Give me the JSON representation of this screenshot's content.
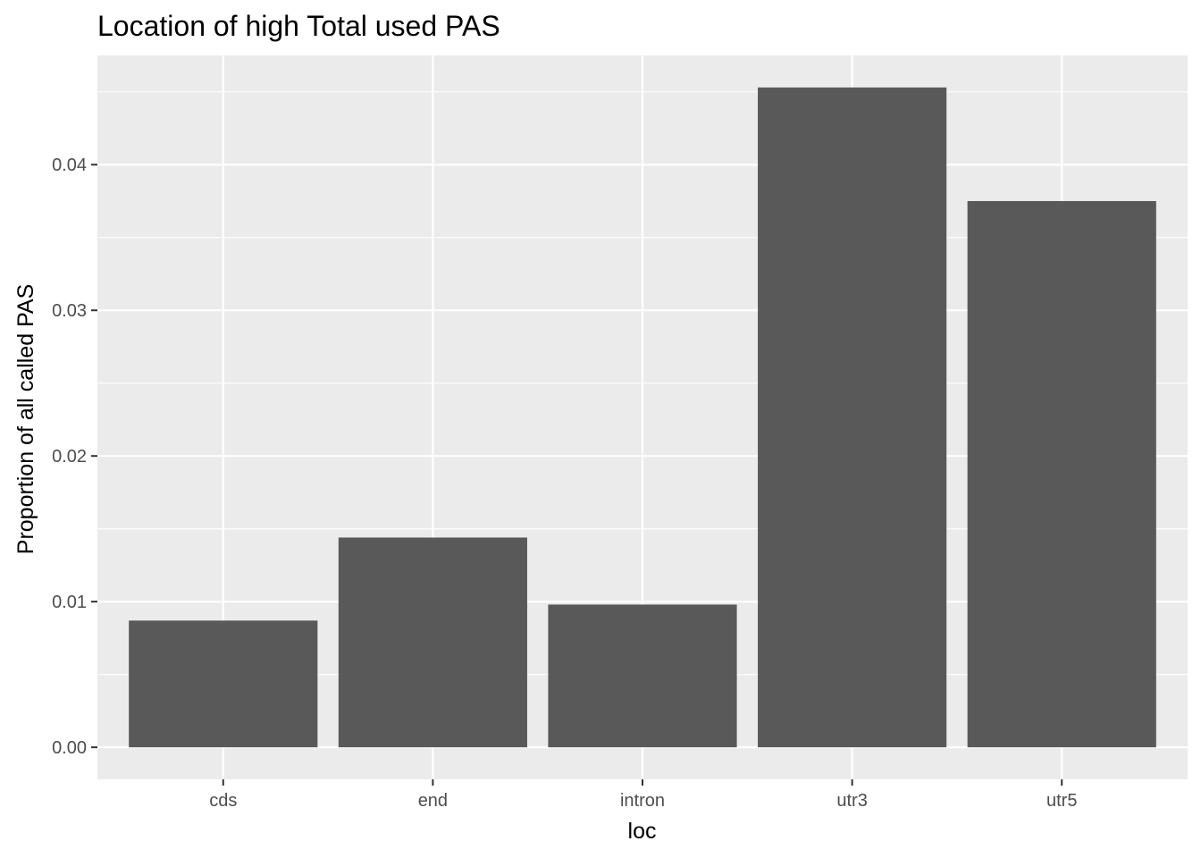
{
  "chart_data": {
    "type": "bar",
    "title": "Location of high Total used PAS",
    "xlabel": "loc",
    "ylabel": "Proportion of all called PAS",
    "categories": [
      "cds",
      "end",
      "intron",
      "utr3",
      "utr5"
    ],
    "values": [
      0.0087,
      0.0144,
      0.0098,
      0.0453,
      0.0375
    ],
    "ylim": [
      -0.0022,
      0.0475
    ],
    "yticks": [
      0.0,
      0.01,
      0.02,
      0.03,
      0.04
    ],
    "ytick_labels": [
      "0.00",
      "0.01",
      "0.02",
      "0.03",
      "0.04"
    ],
    "grid": true,
    "legend": "none",
    "colors": {
      "bar": "#595959",
      "panel_background": "#ebebeb",
      "grid": "#ffffff",
      "tick_text": "#4d4d4d",
      "axis_ticks": "#333333"
    }
  }
}
